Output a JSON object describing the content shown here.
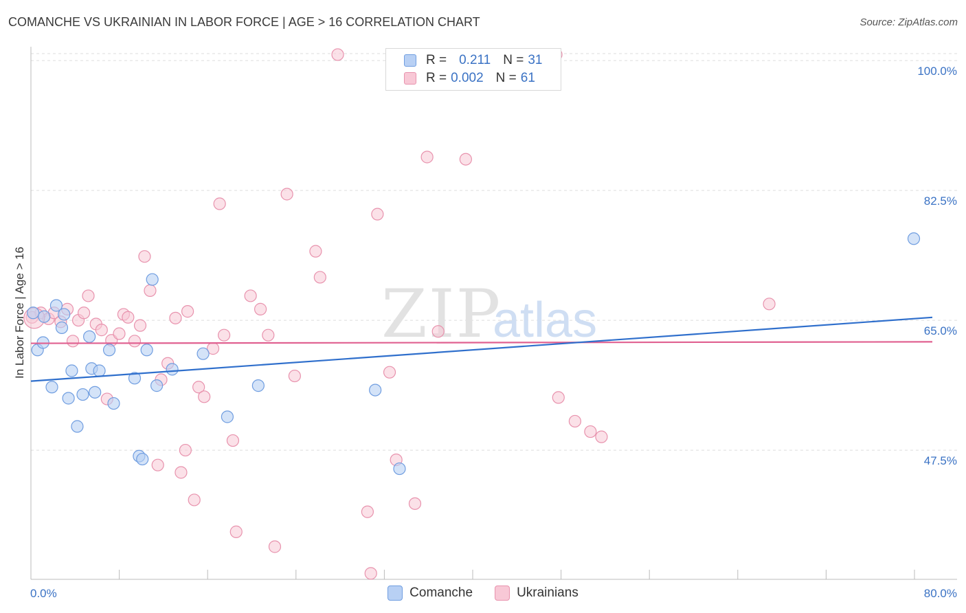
{
  "title": "COMANCHE VS UKRAINIAN IN LABOR FORCE | AGE > 16 CORRELATION CHART",
  "source": "Source: ZipAtlas.com",
  "watermark": {
    "zip": "ZIP",
    "atlas": "atlas"
  },
  "legend_top": {
    "rows": [
      {
        "r_label": "R =",
        "r_value": "0.211",
        "n_label": "N =",
        "n_value": "31"
      },
      {
        "r_label": "R =",
        "r_value": "0.002",
        "n_label": "N =",
        "n_value": "61"
      }
    ]
  },
  "legend_bottom": [
    "Comanche",
    "Ukrainians"
  ],
  "colors": {
    "comanche_fill": "#b8d0f4",
    "comanche_stroke": "#6f9de0",
    "comanche_line": "#2f6fcc",
    "ukrainians_fill": "#f8c8d6",
    "ukrainians_stroke": "#e892ad",
    "ukrainians_line": "#e06090",
    "grid": "#dddddd",
    "tick_label": "#3a72c4"
  },
  "chart_data": {
    "type": "scatter",
    "title": "COMANCHE VS UKRAINIAN IN LABOR FORCE | AGE > 16 CORRELATION CHART",
    "xlabel": "",
    "ylabel": "In Labor Force | Age > 16",
    "xlim": [
      0,
      80
    ],
    "ylim": [
      30.1,
      102.6
    ],
    "x_tick_labels": [
      "0.0%",
      "80.0%"
    ],
    "y_ticks": [
      47.5,
      65.0,
      82.5,
      100.0
    ],
    "y_tick_labels": [
      "47.5%",
      "65.0%",
      "82.5%",
      "100.0%"
    ],
    "grid": "horizontal dashed",
    "legend_position": "top-center",
    "series": [
      {
        "name": "Comanche",
        "r": 0.211,
        "n": 31,
        "trend": [
          [
            0,
            56.8
          ],
          [
            80,
            65.3
          ]
        ],
        "points": [
          [
            0.2,
            66.0
          ],
          [
            0.6,
            61.0
          ],
          [
            1.1,
            62.0
          ],
          [
            1.9,
            56.0
          ],
          [
            2.3,
            67.0
          ],
          [
            2.8,
            64.0
          ],
          [
            3.4,
            54.5
          ],
          [
            3.7,
            58.2
          ],
          [
            4.2,
            50.7
          ],
          [
            4.7,
            55.0
          ],
          [
            5.3,
            62.8
          ],
          [
            5.5,
            58.5
          ],
          [
            5.8,
            55.3
          ],
          [
            6.2,
            58.2
          ],
          [
            7.1,
            61.0
          ],
          [
            7.5,
            53.8
          ],
          [
            9.4,
            57.2
          ],
          [
            9.8,
            46.7
          ],
          [
            10.1,
            46.3
          ],
          [
            10.5,
            61.0
          ],
          [
            11.0,
            70.5
          ],
          [
            11.4,
            56.2
          ],
          [
            12.8,
            58.4
          ],
          [
            15.6,
            60.5
          ],
          [
            17.8,
            52.0
          ],
          [
            20.6,
            56.2
          ],
          [
            31.2,
            55.6
          ],
          [
            33.4,
            45.0
          ],
          [
            80.0,
            76.0
          ],
          [
            1.2,
            65.5
          ],
          [
            3.0,
            65.8
          ]
        ]
      },
      {
        "name": "Ukrainians",
        "r": 0.002,
        "n": 61,
        "trend": [
          [
            0,
            61.9
          ],
          [
            80,
            62.1
          ]
        ],
        "points": [
          [
            0.1,
            65.4
          ],
          [
            0.9,
            66.0
          ],
          [
            1.6,
            65.2
          ],
          [
            2.1,
            66.0
          ],
          [
            2.7,
            64.8
          ],
          [
            3.3,
            66.5
          ],
          [
            3.8,
            62.2
          ],
          [
            4.3,
            65.0
          ],
          [
            4.8,
            66.0
          ],
          [
            5.2,
            68.3
          ],
          [
            5.9,
            64.5
          ],
          [
            6.4,
            63.7
          ],
          [
            6.9,
            54.4
          ],
          [
            7.3,
            62.3
          ],
          [
            8.0,
            63.2
          ],
          [
            8.4,
            65.8
          ],
          [
            8.8,
            65.4
          ],
          [
            9.4,
            62.2
          ],
          [
            9.9,
            64.3
          ],
          [
            10.3,
            73.6
          ],
          [
            10.8,
            69.0
          ],
          [
            11.5,
            45.5
          ],
          [
            11.8,
            57.0
          ],
          [
            12.4,
            59.2
          ],
          [
            13.1,
            65.3
          ],
          [
            13.6,
            44.5
          ],
          [
            14.0,
            47.5
          ],
          [
            14.2,
            66.2
          ],
          [
            14.8,
            40.8
          ],
          [
            15.2,
            56.0
          ],
          [
            15.7,
            54.7
          ],
          [
            16.5,
            61.2
          ],
          [
            17.1,
            80.7
          ],
          [
            17.5,
            63.0
          ],
          [
            18.3,
            48.8
          ],
          [
            18.6,
            36.5
          ],
          [
            19.9,
            68.3
          ],
          [
            20.8,
            66.5
          ],
          [
            21.5,
            63.0
          ],
          [
            22.1,
            34.5
          ],
          [
            23.2,
            82.0
          ],
          [
            23.9,
            57.5
          ],
          [
            25.8,
            74.3
          ],
          [
            26.2,
            70.8
          ],
          [
            27.8,
            100.8
          ],
          [
            30.5,
            39.2
          ],
          [
            30.8,
            30.9
          ],
          [
            31.4,
            79.3
          ],
          [
            32.5,
            58.0
          ],
          [
            33.1,
            46.2
          ],
          [
            34.8,
            40.3
          ],
          [
            35.9,
            87.0
          ],
          [
            36.9,
            63.5
          ],
          [
            39.4,
            86.7
          ],
          [
            47.6,
            100.8
          ],
          [
            47.8,
            54.6
          ],
          [
            49.3,
            51.4
          ],
          [
            50.7,
            50.0
          ],
          [
            51.7,
            49.3
          ],
          [
            66.9,
            67.2
          ],
          [
            0.3,
            65.3
          ]
        ]
      }
    ]
  }
}
